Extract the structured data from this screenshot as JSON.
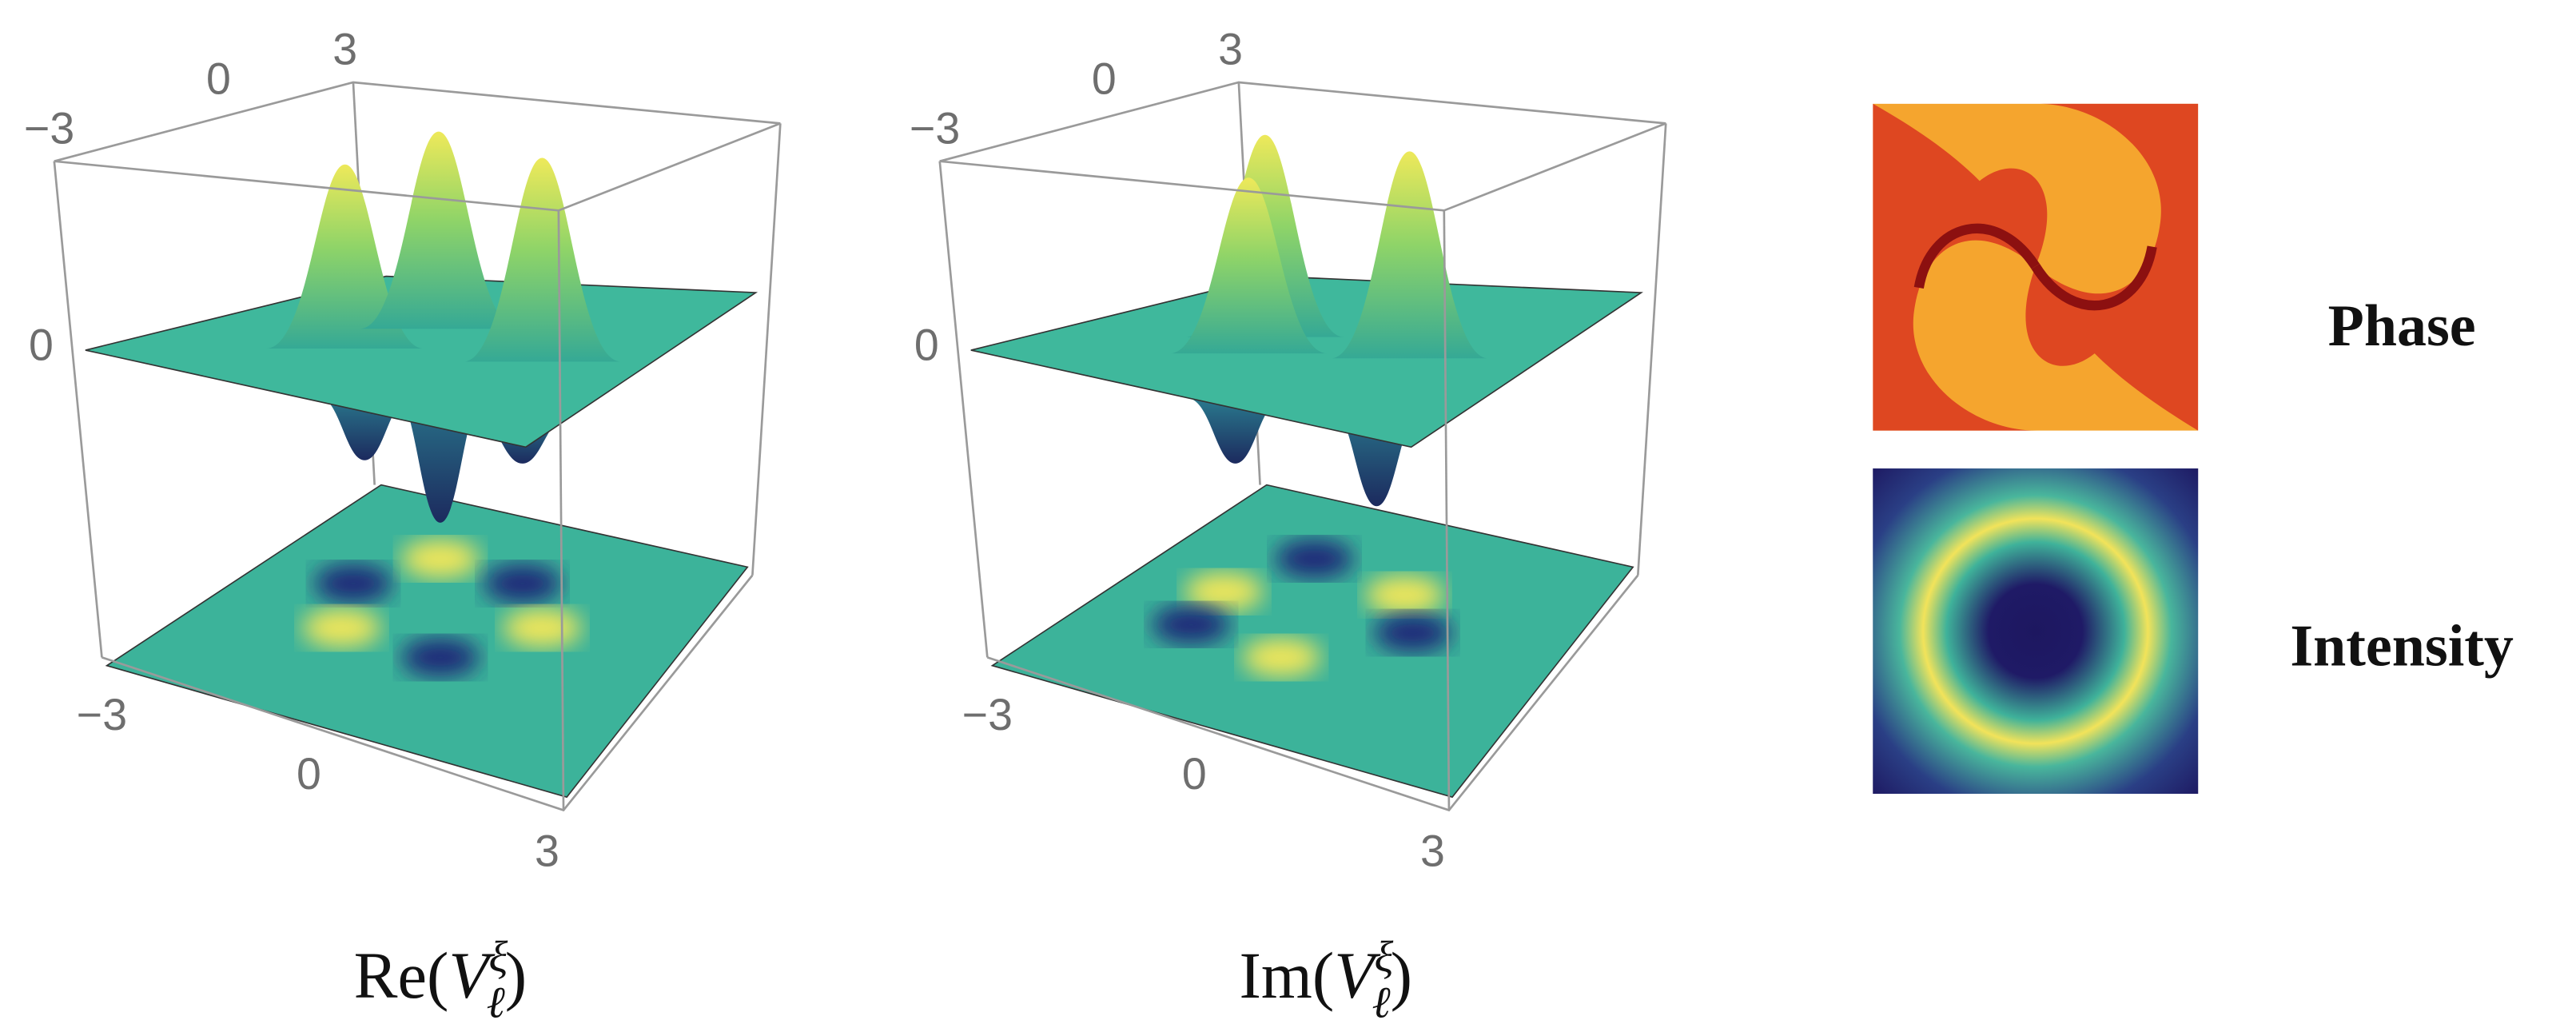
{
  "plots": [
    {
      "top_axis": [
        "−3",
        "0",
        "3"
      ],
      "vertical_axis": [
        "0"
      ],
      "bottom_axis": [
        "−3",
        "0",
        "3"
      ],
      "caption": {
        "prefix": "Re(",
        "base": "V",
        "sub": "ℓ",
        "sup": "ξ",
        "suffix": ")"
      }
    },
    {
      "top_axis": [
        "−3",
        "0",
        "3"
      ],
      "vertical_axis": [
        "0"
      ],
      "bottom_axis": [
        "−3",
        "0",
        "3"
      ],
      "caption": {
        "prefix": "Im(",
        "base": "V",
        "sub": "ℓ",
        "sup": "ξ",
        "suffix": ")"
      }
    }
  ],
  "panels": [
    {
      "label": "Phase"
    },
    {
      "label": "Intensity"
    }
  ]
}
